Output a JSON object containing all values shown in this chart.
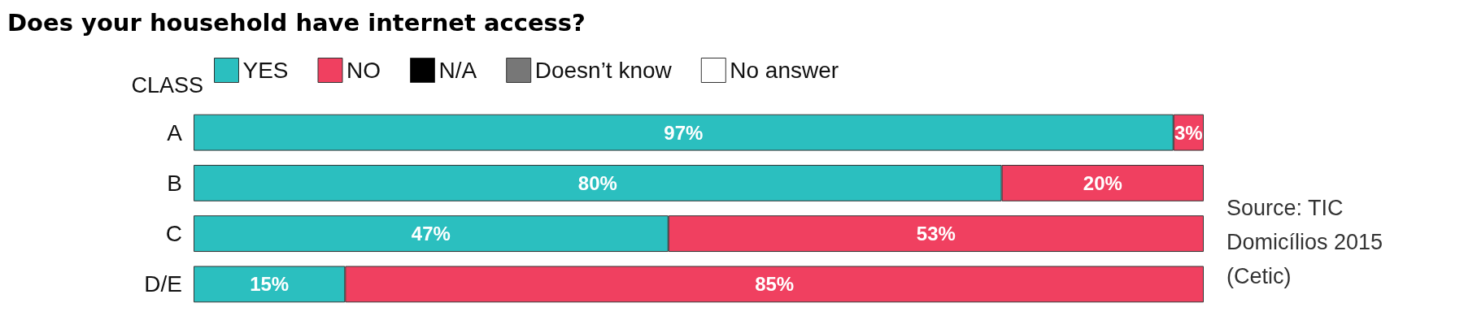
{
  "chart_data": {
    "type": "bar",
    "orientation": "horizontal",
    "stacked": true,
    "xlim": [
      0,
      100
    ],
    "tick_labels": "y",
    "title": "Does your household have internet access?",
    "ylabel": "CLASS",
    "categories": [
      "A",
      "B",
      "C",
      "D/E"
    ],
    "series": [
      {
        "name": "YES",
        "color": "#2bbfbf",
        "values": [
          97,
          80,
          47,
          15
        ],
        "value_labels": [
          "97%",
          "80%",
          "47%",
          "15%"
        ]
      },
      {
        "name": "NO",
        "color": "#f04060",
        "values": [
          3,
          20,
          53,
          85
        ],
        "value_labels": [
          "3%",
          "20%",
          "53%",
          "85%"
        ]
      },
      {
        "name": "N/A",
        "color": "#000000",
        "values": [
          0,
          0,
          0,
          0
        ]
      },
      {
        "name": "Doesn’t know",
        "color": "#777777",
        "values": [
          0,
          0,
          0,
          0
        ]
      },
      {
        "name": "No answer",
        "color": "#ffffff",
        "values": [
          0,
          0,
          0,
          0
        ]
      }
    ],
    "legend": "top",
    "annotations": [
      "Source: TIC Domicílios 2015 (Cetic)"
    ]
  }
}
